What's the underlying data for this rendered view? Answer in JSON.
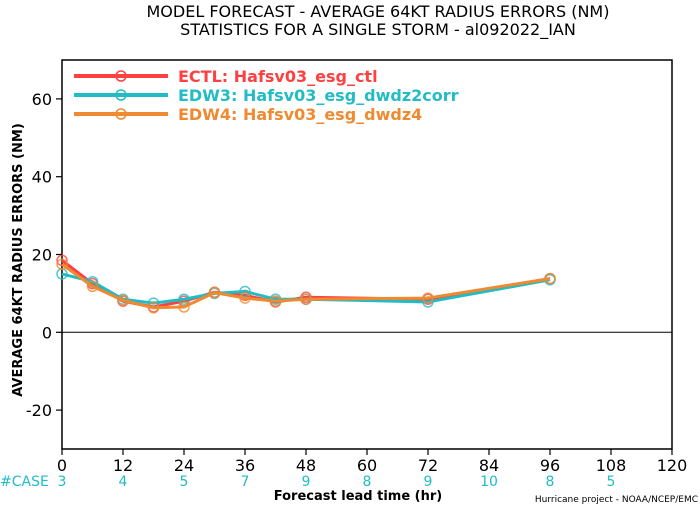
{
  "chart_data": {
    "type": "line",
    "title": "MODEL FORECAST - AVERAGE 64KT RADIUS ERRORS (NM)",
    "subtitle": "STATISTICS FOR A SINGLE STORM - al092022_IAN",
    "xlabel": "Forecast lead time (hr)",
    "ylabel": "AVERAGE 64KT RADIUS ERRORS (NM)",
    "xlim": [
      0,
      120
    ],
    "ylim": [
      -30,
      70
    ],
    "xticks": [
      0,
      12,
      24,
      36,
      48,
      60,
      72,
      84,
      96,
      108,
      120
    ],
    "yticks": [
      -20,
      0,
      20,
      40,
      60
    ],
    "grid": false,
    "legend_position": "top-left",
    "series": [
      {
        "name": "ECTL: Hafsv03_esg_ctl",
        "color": "#ff4040",
        "x": [
          0,
          6,
          12,
          18,
          24,
          30,
          36,
          42,
          48,
          72,
          96
        ],
        "y": [
          18.5,
          12.5,
          8,
          6.5,
          8,
          10.3,
          9.5,
          7.8,
          9,
          8.5,
          13.8
        ]
      },
      {
        "name": "EDW3: Hafsv03_esg_dwdz2corr",
        "color": "#22bcc4",
        "x": [
          0,
          6,
          12,
          18,
          24,
          30,
          36,
          42,
          48,
          72,
          96
        ],
        "y": [
          15,
          13,
          8.5,
          7.5,
          8.5,
          10,
          10.5,
          8.5,
          8.5,
          7.8,
          13.5
        ]
      },
      {
        "name": "EDW4: Hafsv03_esg_dwdz4",
        "color": "#f08a30",
        "x": [
          0,
          6,
          12,
          18,
          24,
          30,
          36,
          42,
          48,
          72,
          96
        ],
        "y": [
          17.5,
          11.8,
          8.2,
          6.3,
          6.5,
          10.2,
          8.8,
          8,
          8.5,
          8.8,
          13.8
        ]
      }
    ],
    "case_label": "#CASE",
    "case_counts": [
      {
        "x": 0,
        "count": "3"
      },
      {
        "x": 12,
        "count": "4"
      },
      {
        "x": 24,
        "count": "5"
      },
      {
        "x": 36,
        "count": "7"
      },
      {
        "x": 48,
        "count": "9"
      },
      {
        "x": 60,
        "count": "8"
      },
      {
        "x": 72,
        "count": "9"
      },
      {
        "x": 84,
        "count": "10"
      },
      {
        "x": 96,
        "count": "8"
      },
      {
        "x": 108,
        "count": "5"
      }
    ],
    "credit": "Hurricane project - NOAA/NCEP/EMC"
  }
}
